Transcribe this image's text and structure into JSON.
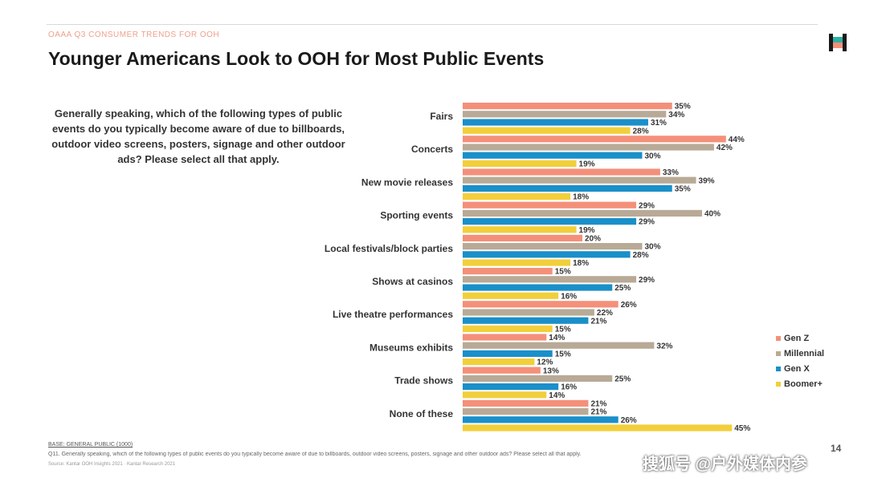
{
  "kicker": "OAAA Q3 CONSUMER TRENDS FOR OOH",
  "title": "Younger Americans Look to OOH for Most Public Events",
  "question": "Generally speaking, which of the following types of public events do you typically become aware of due to billboards, outdoor video screens, posters, signage and other outdoor ads? Please select all that apply.",
  "base_label": "BASE: GENERAL PUBLIC (1000)",
  "footnote": "Q11. Generally speaking, which of the following types of public events do you typically become aware of due to billboards, outdoor video screens, posters, signage and other outdoor ads? Please select all that apply.",
  "source": "Source: Kantar OOH Insights 2021 · Kantar Research 2021",
  "page_number": "14",
  "watermark": "搜狐号 @户外媒体内参",
  "logo_icon": "oaaa-logo-icon",
  "colors": {
    "gen_z": "#f4907a",
    "millennial": "#b8aa96",
    "gen_x": "#1a8fc9",
    "boomer": "#f2cf3a"
  },
  "chart_data": {
    "type": "bar",
    "orientation": "horizontal",
    "value_suffix": "%",
    "categories": [
      "Fairs",
      "Concerts",
      "New movie releases",
      "Sporting events",
      "Local festivals/block parties",
      "Shows at casinos",
      "Live theatre performances",
      "Museums exhibits",
      "Trade shows",
      "None of these"
    ],
    "series": [
      {
        "name": "Gen Z",
        "color": "#f4907a",
        "values": [
          35,
          44,
          33,
          29,
          20,
          15,
          26,
          14,
          13,
          21
        ]
      },
      {
        "name": "Millennial",
        "color": "#b8aa96",
        "values": [
          34,
          42,
          39,
          40,
          30,
          29,
          22,
          32,
          25,
          21
        ]
      },
      {
        "name": "Gen X",
        "color": "#1a8fc9",
        "values": [
          31,
          30,
          35,
          29,
          28,
          25,
          21,
          15,
          16,
          26
        ]
      },
      {
        "name": "Boomer+",
        "color": "#f2cf3a",
        "values": [
          28,
          19,
          18,
          19,
          18,
          16,
          15,
          12,
          14,
          45
        ]
      }
    ],
    "xlim": [
      0,
      50
    ],
    "legend_position": "right"
  }
}
